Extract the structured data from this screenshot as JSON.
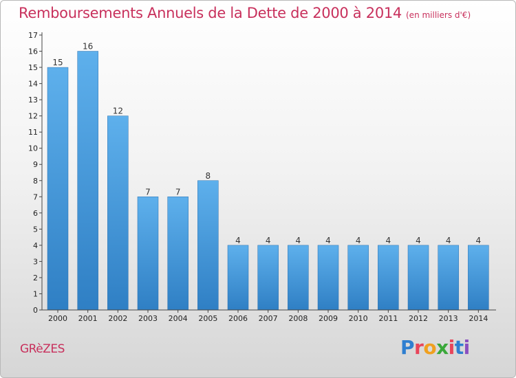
{
  "header": {
    "title": "Remboursements Annuels de la Dette de 2000 à 2014",
    "subtitle": "(en milliers d'€)"
  },
  "footer": {
    "commune": "GRèZES",
    "logo_text": "Proxiti",
    "logo_colors": [
      "#2f7fd0",
      "#e8455a",
      "#f0a020",
      "#3aa83a",
      "#e8455a",
      "#2f7fd0",
      "#8a4fc0"
    ]
  },
  "chart_data": {
    "type": "bar",
    "categories": [
      "2000",
      "2001",
      "2002",
      "2003",
      "2004",
      "2005",
      "2006",
      "2007",
      "2008",
      "2009",
      "2010",
      "2011",
      "2012",
      "2013",
      "2014"
    ],
    "values": [
      15,
      16,
      12,
      7,
      7,
      8,
      4,
      4,
      4,
      4,
      4,
      4,
      4,
      4,
      4
    ],
    "title": "Remboursements Annuels de la Dette de 2000 à 2014",
    "ylim": [
      0,
      17
    ],
    "yticks": [
      0,
      1,
      2,
      3,
      4,
      5,
      6,
      7,
      8,
      9,
      10,
      11,
      12,
      13,
      14,
      15,
      16,
      17
    ],
    "grid": false,
    "bar_color": "#4a9ee0"
  }
}
